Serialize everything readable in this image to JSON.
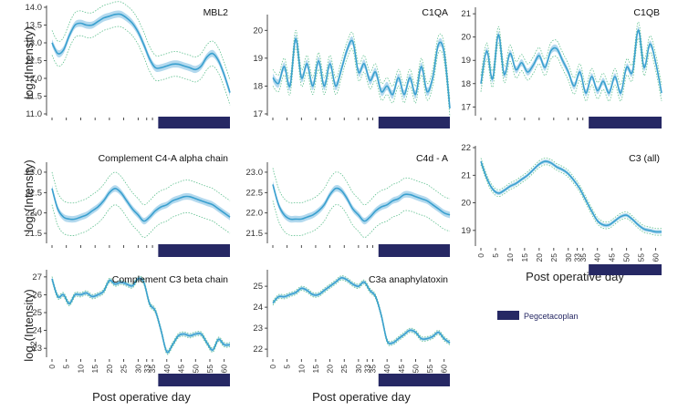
{
  "figure": {
    "ylabel_base": "log",
    "ylabel_sub": "2",
    "ylabel_rest": "(Intensity)",
    "xlabel": "Post operative day",
    "legend_label": "Pegcetacoplan",
    "colors": {
      "line": "#3aa0cf",
      "band": "#b3d9ee",
      "dotted": "#5fc08f",
      "treatment": "#262864",
      "axis": "#222222"
    }
  },
  "chart_data": [
    {
      "type": "line",
      "title": "MBL2",
      "ylim": [
        11.0,
        14.0
      ],
      "yticks": [
        11.0,
        11.5,
        12.0,
        12.5,
        13.0,
        13.5,
        14.0
      ],
      "ytick_labels": [
        "11.0",
        "11.5",
        "12.0",
        "12.5",
        "13.0",
        "13.5",
        "14.0"
      ],
      "xlim": [
        0,
        62
      ],
      "treatment": [
        37,
        62
      ],
      "show_x_labels": false,
      "x": [
        0,
        2,
        4,
        6,
        8,
        10,
        12,
        14,
        16,
        18,
        20,
        22,
        24,
        26,
        28,
        30,
        32,
        34,
        36,
        38,
        40,
        42,
        44,
        46,
        48,
        50,
        52,
        54,
        56,
        58,
        60,
        62
      ],
      "y": [
        13.0,
        12.7,
        12.8,
        13.2,
        13.5,
        13.55,
        13.5,
        13.5,
        13.6,
        13.7,
        13.75,
        13.8,
        13.8,
        13.7,
        13.55,
        13.3,
        12.95,
        12.55,
        12.3,
        12.3,
        12.35,
        12.4,
        12.4,
        12.35,
        12.3,
        12.25,
        12.35,
        12.6,
        12.7,
        12.5,
        12.1,
        11.6
      ],
      "band": 0.1,
      "dotted": 0.35
    },
    {
      "type": "line",
      "title": "C1QA",
      "ylim": [
        17.0,
        20.5
      ],
      "yticks": [
        17,
        18,
        19,
        20
      ],
      "ytick_labels": [
        "17",
        "18",
        "19",
        "20"
      ],
      "xlim": [
        0,
        62
      ],
      "treatment": [
        37,
        62
      ],
      "show_x_labels": false,
      "x": [
        0,
        2,
        4,
        6,
        8,
        10,
        12,
        14,
        16,
        18,
        20,
        22,
        24,
        26,
        28,
        30,
        32,
        34,
        36,
        38,
        40,
        42,
        44,
        46,
        48,
        50,
        52,
        54,
        56,
        58,
        60,
        62
      ],
      "y": [
        18.3,
        18.1,
        18.7,
        18.0,
        19.7,
        18.3,
        18.8,
        18.0,
        18.9,
        18.0,
        18.8,
        18.0,
        18.6,
        19.3,
        19.6,
        18.5,
        18.8,
        18.2,
        18.5,
        17.8,
        18.0,
        17.7,
        18.3,
        17.7,
        18.3,
        17.7,
        18.7,
        17.8,
        18.3,
        19.5,
        19.2,
        17.2
      ],
      "band": 0.15,
      "dotted": 0.3
    },
    {
      "type": "line",
      "title": "C1QB",
      "ylim": [
        16.7,
        21.2
      ],
      "yticks": [
        17,
        18,
        19,
        20,
        21
      ],
      "ytick_labels": [
        "17",
        "18",
        "19",
        "20",
        "21"
      ],
      "xlim": [
        0,
        62
      ],
      "treatment": [
        37,
        62
      ],
      "show_x_labels": false,
      "x": [
        0,
        2,
        4,
        6,
        8,
        10,
        12,
        14,
        16,
        18,
        20,
        22,
        24,
        26,
        28,
        30,
        32,
        34,
        36,
        38,
        40,
        42,
        44,
        46,
        48,
        50,
        52,
        54,
        56,
        58,
        60,
        62
      ],
      "y": [
        18.0,
        19.4,
        18.2,
        20.1,
        18.4,
        19.3,
        18.6,
        18.9,
        18.5,
        18.8,
        19.2,
        18.7,
        19.4,
        19.5,
        19.0,
        18.5,
        17.9,
        18.5,
        17.6,
        18.3,
        17.7,
        18.1,
        17.6,
        18.3,
        17.6,
        18.7,
        18.5,
        20.3,
        18.7,
        19.7,
        18.9,
        17.6
      ],
      "band": 0.15,
      "dotted": 0.35
    },
    {
      "type": "line",
      "title": "Complement C4-A alpha chain",
      "ylim": [
        21.3,
        23.2
      ],
      "yticks": [
        21.5,
        22.0,
        22.5,
        23.0
      ],
      "ytick_labels": [
        "21.5",
        "22.0",
        "22.5",
        "23.0"
      ],
      "xlim": [
        0,
        62
      ],
      "treatment": [
        37,
        62
      ],
      "show_x_labels": false,
      "x": [
        0,
        2,
        4,
        6,
        8,
        10,
        12,
        14,
        16,
        18,
        20,
        22,
        24,
        26,
        28,
        30,
        32,
        34,
        36,
        38,
        40,
        42,
        44,
        46,
        48,
        50,
        52,
        54,
        56,
        58,
        60,
        62
      ],
      "y": [
        22.6,
        22.1,
        21.9,
        21.85,
        21.85,
        21.9,
        21.95,
        22.05,
        22.15,
        22.3,
        22.5,
        22.6,
        22.5,
        22.3,
        22.1,
        21.95,
        21.8,
        21.9,
        22.05,
        22.15,
        22.2,
        22.3,
        22.35,
        22.4,
        22.4,
        22.35,
        22.3,
        22.25,
        22.2,
        22.1,
        22.0,
        21.9
      ],
      "band": 0.08,
      "dotted": 0.4
    },
    {
      "type": "line",
      "title": "C4d - A",
      "ylim": [
        21.3,
        23.2
      ],
      "yticks": [
        21.5,
        22.0,
        22.5,
        23.0
      ],
      "ytick_labels": [
        "21.5",
        "22.0",
        "22.5",
        "23.0"
      ],
      "xlim": [
        0,
        62
      ],
      "treatment": [
        37,
        62
      ],
      "show_x_labels": false,
      "x": [
        0,
        2,
        4,
        6,
        8,
        10,
        12,
        14,
        16,
        18,
        20,
        22,
        24,
        26,
        28,
        30,
        32,
        34,
        36,
        38,
        40,
        42,
        44,
        46,
        48,
        50,
        52,
        54,
        56,
        58,
        60,
        62
      ],
      "y": [
        22.7,
        22.2,
        21.95,
        21.85,
        21.85,
        21.85,
        21.9,
        21.95,
        22.05,
        22.2,
        22.45,
        22.6,
        22.55,
        22.35,
        22.1,
        21.95,
        21.8,
        21.9,
        22.05,
        22.15,
        22.2,
        22.3,
        22.35,
        22.45,
        22.45,
        22.4,
        22.35,
        22.3,
        22.2,
        22.1,
        22.0,
        21.95
      ],
      "band": 0.08,
      "dotted": 0.4
    },
    {
      "type": "line",
      "title": "C3 (all)",
      "ylim": [
        18.5,
        22.0
      ],
      "yticks": [
        19,
        20,
        21,
        22
      ],
      "ytick_labels": [
        "19",
        "20",
        "21",
        "22"
      ],
      "xlim": [
        0,
        62
      ],
      "treatment": [
        37,
        62
      ],
      "show_x_labels": true,
      "x": [
        0,
        2,
        4,
        6,
        8,
        10,
        12,
        14,
        16,
        18,
        20,
        22,
        24,
        26,
        28,
        30,
        32,
        34,
        36,
        38,
        40,
        42,
        44,
        46,
        48,
        50,
        52,
        54,
        56,
        58,
        60,
        62
      ],
      "y": [
        21.5,
        20.9,
        20.5,
        20.35,
        20.45,
        20.6,
        20.7,
        20.85,
        21.0,
        21.2,
        21.4,
        21.5,
        21.45,
        21.3,
        21.2,
        21.05,
        20.8,
        20.5,
        20.1,
        19.7,
        19.35,
        19.2,
        19.2,
        19.35,
        19.5,
        19.55,
        19.4,
        19.2,
        19.05,
        19.0,
        18.95,
        18.95
      ],
      "band": 0.07,
      "dotted": 0.12
    },
    {
      "type": "line",
      "title": "Complement C3 beta chain",
      "ylim": [
        22.6,
        27.3
      ],
      "yticks": [
        23,
        24,
        25,
        26,
        27
      ],
      "ytick_labels": [
        "23",
        "24",
        "25",
        "26",
        "27"
      ],
      "xlim": [
        0,
        62
      ],
      "treatment": [
        37,
        62
      ],
      "show_x_labels": true,
      "x": [
        0,
        2,
        4,
        6,
        8,
        10,
        12,
        14,
        16,
        18,
        20,
        22,
        24,
        26,
        28,
        30,
        32,
        34,
        36,
        38,
        40,
        42,
        44,
        46,
        48,
        50,
        52,
        54,
        56,
        58,
        60,
        62
      ],
      "y": [
        26.9,
        25.9,
        26.0,
        25.5,
        26.0,
        26.0,
        26.1,
        25.9,
        26.0,
        26.2,
        26.8,
        26.6,
        26.7,
        26.6,
        26.5,
        26.9,
        26.7,
        25.5,
        25.1,
        24.0,
        22.8,
        23.2,
        23.7,
        23.8,
        23.7,
        23.8,
        23.8,
        23.3,
        22.9,
        23.5,
        23.2,
        23.2
      ],
      "band": 0.1,
      "dotted": 0.12
    },
    {
      "type": "line",
      "title": "C3a anaphylatoxin",
      "ylim": [
        21.7,
        25.7
      ],
      "yticks": [
        22,
        23,
        24,
        25
      ],
      "ytick_labels": [
        "22",
        "23",
        "24",
        "25"
      ],
      "xlim": [
        0,
        62
      ],
      "treatment": [
        37,
        62
      ],
      "show_x_labels": true,
      "x": [
        0,
        2,
        4,
        6,
        8,
        10,
        12,
        14,
        16,
        18,
        20,
        22,
        24,
        26,
        28,
        30,
        32,
        34,
        36,
        38,
        40,
        42,
        44,
        46,
        48,
        50,
        52,
        54,
        56,
        58,
        60,
        62
      ],
      "y": [
        24.2,
        24.5,
        24.5,
        24.6,
        24.7,
        24.9,
        24.8,
        24.6,
        24.6,
        24.8,
        25.0,
        25.2,
        25.4,
        25.3,
        25.1,
        25.0,
        25.2,
        24.8,
        24.5,
        23.6,
        22.4,
        22.3,
        22.5,
        22.7,
        22.9,
        22.8,
        22.5,
        22.5,
        22.6,
        22.8,
        22.5,
        22.3
      ],
      "band": 0.08,
      "dotted": 0.1
    }
  ],
  "x_axis": {
    "ticks": [
      0,
      5,
      10,
      15,
      20,
      25,
      30,
      33,
      35,
      40,
      45,
      50,
      55,
      60
    ],
    "labels": [
      "0",
      "5",
      "10",
      "15",
      "20",
      "25",
      "30",
      "33",
      "35",
      "40",
      "45",
      "50",
      "55",
      "60"
    ]
  }
}
